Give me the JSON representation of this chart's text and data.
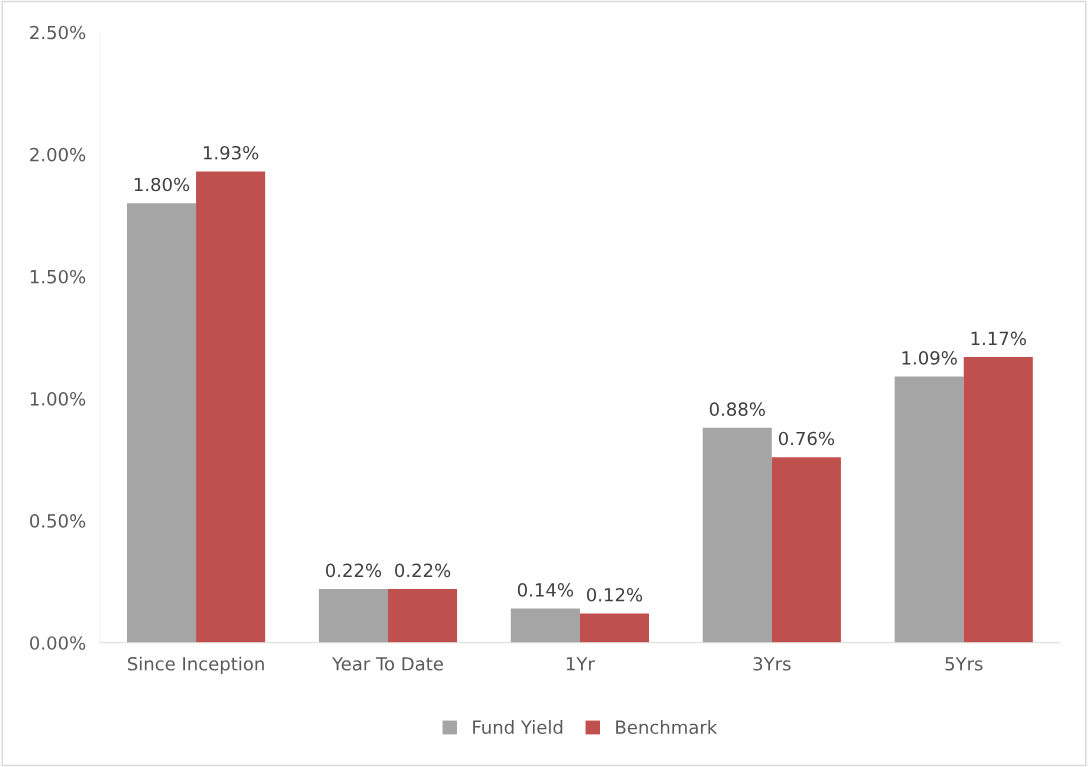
{
  "chart_data": {
    "type": "bar",
    "categories": [
      "Since Inception",
      "Year To Date",
      "1Yr",
      "3Yrs",
      "5Yrs"
    ],
    "series": [
      {
        "name": "Fund Yield",
        "color": "#a5a5a5",
        "values": [
          1.8,
          0.22,
          0.14,
          0.88,
          1.09
        ],
        "value_labels": [
          "1.80%",
          "0.22%",
          "0.14%",
          "0.88%",
          "1.09%"
        ]
      },
      {
        "name": "Benchmark",
        "color": "#c0504d",
        "values": [
          1.93,
          0.22,
          0.12,
          0.76,
          1.17
        ],
        "value_labels": [
          "1.93%",
          "0.22%",
          "0.12%",
          "0.76%",
          "1.17%"
        ]
      }
    ],
    "ylim": [
      0,
      2.5
    ],
    "yticks": [
      {
        "value": 0,
        "label": "0.00%"
      },
      {
        "value": 0.5,
        "label": "0.50%"
      },
      {
        "value": 1.0,
        "label": "1.00%"
      },
      {
        "value": 1.5,
        "label": "1.50%"
      },
      {
        "value": 2.0,
        "label": "2.00%"
      },
      {
        "value": 2.5,
        "label": "2.50%"
      }
    ],
    "grid": false,
    "legend": "bottom"
  }
}
